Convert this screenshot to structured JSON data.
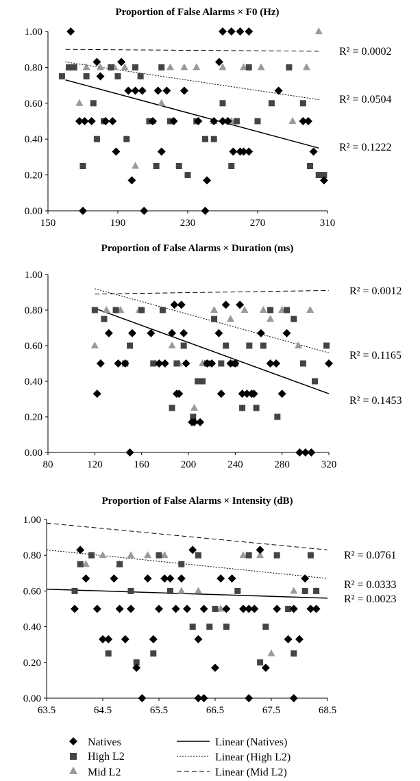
{
  "chart_data": [
    {
      "type": "scatter",
      "title": "Proportion of False Alarms × F0 (Hz)",
      "xlim": [
        150,
        310
      ],
      "ylim": [
        0,
        1
      ],
      "xticks": [
        "150",
        "190",
        "230",
        "270",
        "310"
      ],
      "yticks": [
        "0.00",
        "0.20",
        "0.40",
        "0.60",
        "0.80",
        "1.00"
      ],
      "grid": false,
      "series": [
        {
          "name": "Natives",
          "x": [
            163,
            168,
            171,
            175,
            178,
            180,
            183,
            187,
            189,
            192,
            196,
            198,
            200,
            204,
            210,
            213,
            215,
            218,
            222,
            228,
            236,
            241,
            245,
            248,
            250,
            253,
            256,
            260,
            262,
            265,
            282,
            296,
            299,
            302,
            308,
            250,
            255,
            260,
            265,
            170,
            205,
            240
          ],
          "y": [
            1,
            0.5,
            0.5,
            0.5,
            0.83,
            0.75,
            0.5,
            0.5,
            0.33,
            0.83,
            0.67,
            0.17,
            0.67,
            0.67,
            0.5,
            0.67,
            0.33,
            0.67,
            0.5,
            0.67,
            0.5,
            0.17,
            0.5,
            0.83,
            0.5,
            0.5,
            0.33,
            0.33,
            0.33,
            0.33,
            0.67,
            0.5,
            0.5,
            0.33,
            0.17,
            1,
            1,
            1,
            1,
            0,
            0,
            0
          ]
        },
        {
          "name": "High L2",
          "x": [
            158,
            162,
            165,
            170,
            172,
            176,
            178,
            182,
            186,
            190,
            195,
            200,
            203,
            208,
            212,
            215,
            220,
            225,
            230,
            235,
            240,
            245,
            250,
            255,
            258,
            265,
            270,
            278,
            288,
            296,
            300,
            305,
            308
          ],
          "y": [
            0.75,
            0.8,
            0.8,
            0.25,
            0.75,
            0.6,
            0.4,
            0.5,
            0.8,
            0.75,
            0.4,
            0.8,
            0.75,
            0.5,
            0.25,
            0.8,
            0.5,
            0.25,
            0.2,
            0.5,
            0.4,
            0.4,
            0.6,
            0.25,
            0.5,
            0.8,
            0.5,
            0.6,
            0.8,
            0.6,
            0.25,
            0.2,
            0.2
          ]
        },
        {
          "name": "Mid L2",
          "x": [
            162,
            168,
            172,
            180,
            188,
            194,
            200,
            210,
            215,
            220,
            228,
            235,
            245,
            250,
            255,
            262,
            272,
            290,
            298,
            305
          ],
          "y": [
            0.8,
            0.6,
            0.8,
            0.8,
            0.8,
            0.8,
            0.25,
            0.5,
            0.6,
            0.8,
            0.8,
            0.8,
            0.5,
            0.8,
            0.5,
            0.8,
            0.8,
            0.5,
            0.8,
            1
          ]
        },
        {
          "name": "Linear (Natives)",
          "x": [
            160,
            305
          ],
          "y": [
            0.73,
            0.35
          ]
        },
        {
          "name": "Linear (High L2)",
          "x": [
            160,
            305
          ],
          "y": [
            0.83,
            0.62
          ]
        },
        {
          "name": "Linear (Mid L2)",
          "x": [
            160,
            305
          ],
          "y": [
            0.9,
            0.89
          ]
        }
      ],
      "annotations": [
        "R² = 0.0002",
        "R² = 0.0504",
        "R² = 0.1222"
      ]
    },
    {
      "type": "scatter",
      "title": "Proportion of False Alarms × Duration (ms)",
      "xlim": [
        80,
        320
      ],
      "ylim": [
        0,
        1
      ],
      "xticks": [
        "80",
        "120",
        "160",
        "200",
        "240",
        "280",
        "320"
      ],
      "yticks": [
        "0.00",
        "0.20",
        "0.40",
        "0.60",
        "0.80",
        "1.00"
      ],
      "grid": false,
      "series": [
        {
          "name": "Natives",
          "x": [
            122,
            125,
            132,
            140,
            146,
            152,
            168,
            175,
            180,
            186,
            188,
            190,
            192,
            194,
            196,
            198,
            203,
            205,
            210,
            216,
            220,
            226,
            228,
            232,
            236,
            240,
            244,
            246,
            250,
            254,
            256,
            262,
            270,
            275,
            280,
            284,
            150,
            295,
            300,
            305,
            320
          ],
          "y": [
            0.33,
            0.5,
            0.67,
            0.5,
            0.5,
            0.67,
            0.67,
            0.5,
            0.5,
            0.67,
            0.83,
            0.33,
            0.33,
            0.83,
            0.67,
            0.5,
            0.17,
            0.17,
            0.17,
            0.5,
            0.5,
            0.67,
            0.33,
            0.83,
            0.5,
            0.5,
            0.83,
            0.33,
            0.33,
            0.33,
            0.33,
            0.67,
            0.5,
            0.5,
            0.33,
            0.67,
            0,
            0,
            0,
            0,
            0.5
          ]
        },
        {
          "name": "High L2",
          "x": [
            120,
            128,
            138,
            146,
            150,
            160,
            170,
            178,
            186,
            190,
            196,
            204,
            208,
            212,
            216,
            222,
            228,
            232,
            240,
            246,
            252,
            258,
            264,
            270,
            276,
            284,
            290,
            298,
            308,
            318
          ],
          "y": [
            0.8,
            0.75,
            0.8,
            0.5,
            0.6,
            0.8,
            0.5,
            0.8,
            0.25,
            0.5,
            0.6,
            0.2,
            0.4,
            0.4,
            0.5,
            0.75,
            0.5,
            0.6,
            0.5,
            0.25,
            0.6,
            0.25,
            0.6,
            0.8,
            0.2,
            0.8,
            0.75,
            0.5,
            0.4,
            0.6
          ]
        },
        {
          "name": "Mid L2",
          "x": [
            120,
            130,
            142,
            158,
            172,
            186,
            192,
            205,
            212,
            222,
            236,
            248,
            264,
            270,
            280,
            294,
            304
          ],
          "y": [
            0.6,
            0.8,
            0.8,
            0.8,
            0.5,
            0.6,
            0.5,
            0.25,
            0.5,
            0.8,
            0.75,
            0.8,
            0.8,
            0.75,
            0.8,
            0.6,
            0.8
          ]
        },
        {
          "name": "Linear (Natives)",
          "x": [
            120,
            320
          ],
          "y": [
            0.81,
            0.33
          ]
        },
        {
          "name": "Linear (High L2)",
          "x": [
            120,
            320
          ],
          "y": [
            0.92,
            0.56
          ]
        },
        {
          "name": "Linear (Mid L2)",
          "x": [
            120,
            320
          ],
          "y": [
            0.89,
            0.91
          ]
        }
      ],
      "annotations": [
        "R² = 0.0012",
        "R² = 0.1165",
        "R² = 0.1453"
      ]
    },
    {
      "type": "scatter",
      "title": "Proportion of False Alarms × Intensity (dB)",
      "xlim": [
        63.5,
        68.5
      ],
      "ylim": [
        0,
        1
      ],
      "xticks": [
        "63.5",
        "64.5",
        "65.5",
        "66.5",
        "67.5",
        "68.5"
      ],
      "yticks": [
        "0.00",
        "0.20",
        "0.40",
        "0.60",
        "0.80",
        "1.00"
      ],
      "grid": false,
      "series": [
        {
          "name": "Natives",
          "x": [
            64.0,
            64.1,
            64.2,
            64.4,
            64.5,
            64.6,
            64.7,
            64.8,
            64.9,
            65.0,
            65.1,
            65.3,
            65.4,
            65.5,
            65.6,
            65.7,
            65.8,
            65.9,
            66.0,
            66.1,
            66.2,
            66.3,
            66.5,
            66.6,
            66.7,
            66.8,
            67.0,
            67.1,
            67.2,
            67.3,
            67.4,
            67.6,
            67.8,
            67.9,
            68.0,
            68.1,
            68.2,
            68.3,
            65.2,
            66.2,
            66.3,
            67.1,
            67.9
          ],
          "y": [
            0.5,
            0.83,
            0.67,
            0.5,
            0.33,
            0.33,
            0.67,
            0.5,
            0.33,
            0.5,
            0.17,
            0.67,
            0.33,
            0.5,
            0.67,
            0.67,
            0.5,
            0.67,
            0.5,
            0.83,
            0.33,
            0.5,
            0.17,
            0.67,
            0.5,
            0.67,
            0.5,
            0.5,
            0.5,
            0.83,
            0.17,
            0.5,
            0.33,
            0.5,
            0.33,
            0.67,
            0.5,
            0.5,
            0,
            0,
            0,
            0,
            0
          ]
        },
        {
          "name": "High L2",
          "x": [
            64.0,
            64.1,
            64.3,
            64.6,
            64.8,
            65.0,
            65.1,
            65.4,
            65.5,
            65.7,
            65.9,
            66.1,
            66.2,
            66.4,
            66.5,
            66.7,
            66.9,
            67.1,
            67.3,
            67.4,
            67.6,
            67.8,
            67.9,
            68.1,
            68.2,
            68.3
          ],
          "y": [
            0.6,
            0.75,
            0.8,
            0.25,
            0.75,
            0.6,
            0.2,
            0.25,
            0.8,
            0.6,
            0.75,
            0.4,
            0.8,
            0.4,
            0.5,
            0.4,
            0.6,
            0.8,
            0.2,
            0.4,
            0.8,
            0.5,
            0.25,
            0.6,
            0.8,
            0.6
          ]
        },
        {
          "name": "Mid L2",
          "x": [
            64.2,
            64.5,
            64.8,
            65.0,
            65.3,
            65.6,
            65.9,
            66.2,
            66.6,
            67.0,
            67.3,
            67.5,
            67.9,
            68.3
          ],
          "y": [
            0.75,
            0.8,
            0.75,
            0.8,
            0.8,
            0.8,
            0.6,
            0.6,
            0.5,
            0.8,
            0.8,
            0.25,
            0.6,
            0.6
          ]
        },
        {
          "name": "Linear (Natives)",
          "x": [
            63.5,
            68.5
          ],
          "y": [
            0.61,
            0.56
          ]
        },
        {
          "name": "Linear (High L2)",
          "x": [
            63.5,
            68.5
          ],
          "y": [
            0.83,
            0.67
          ]
        },
        {
          "name": "Linear (Mid L2)",
          "x": [
            63.5,
            68.5
          ],
          "y": [
            0.98,
            0.83
          ]
        }
      ],
      "annotations": [
        "R² = 0.0761",
        "R² = 0.0333",
        "R² = 0.0023"
      ]
    }
  ],
  "legend": {
    "natives": "Natives",
    "high_l2": "High L2",
    "mid_l2": "Mid L2",
    "lin_natives": "Linear (Natives)",
    "lin_high": "Linear (High L2)",
    "lin_mid": "Linear (Mid L2)"
  },
  "colors": {
    "natives": "#000000",
    "high_l2": "#444444",
    "mid_l2": "#9a9a9a"
  }
}
